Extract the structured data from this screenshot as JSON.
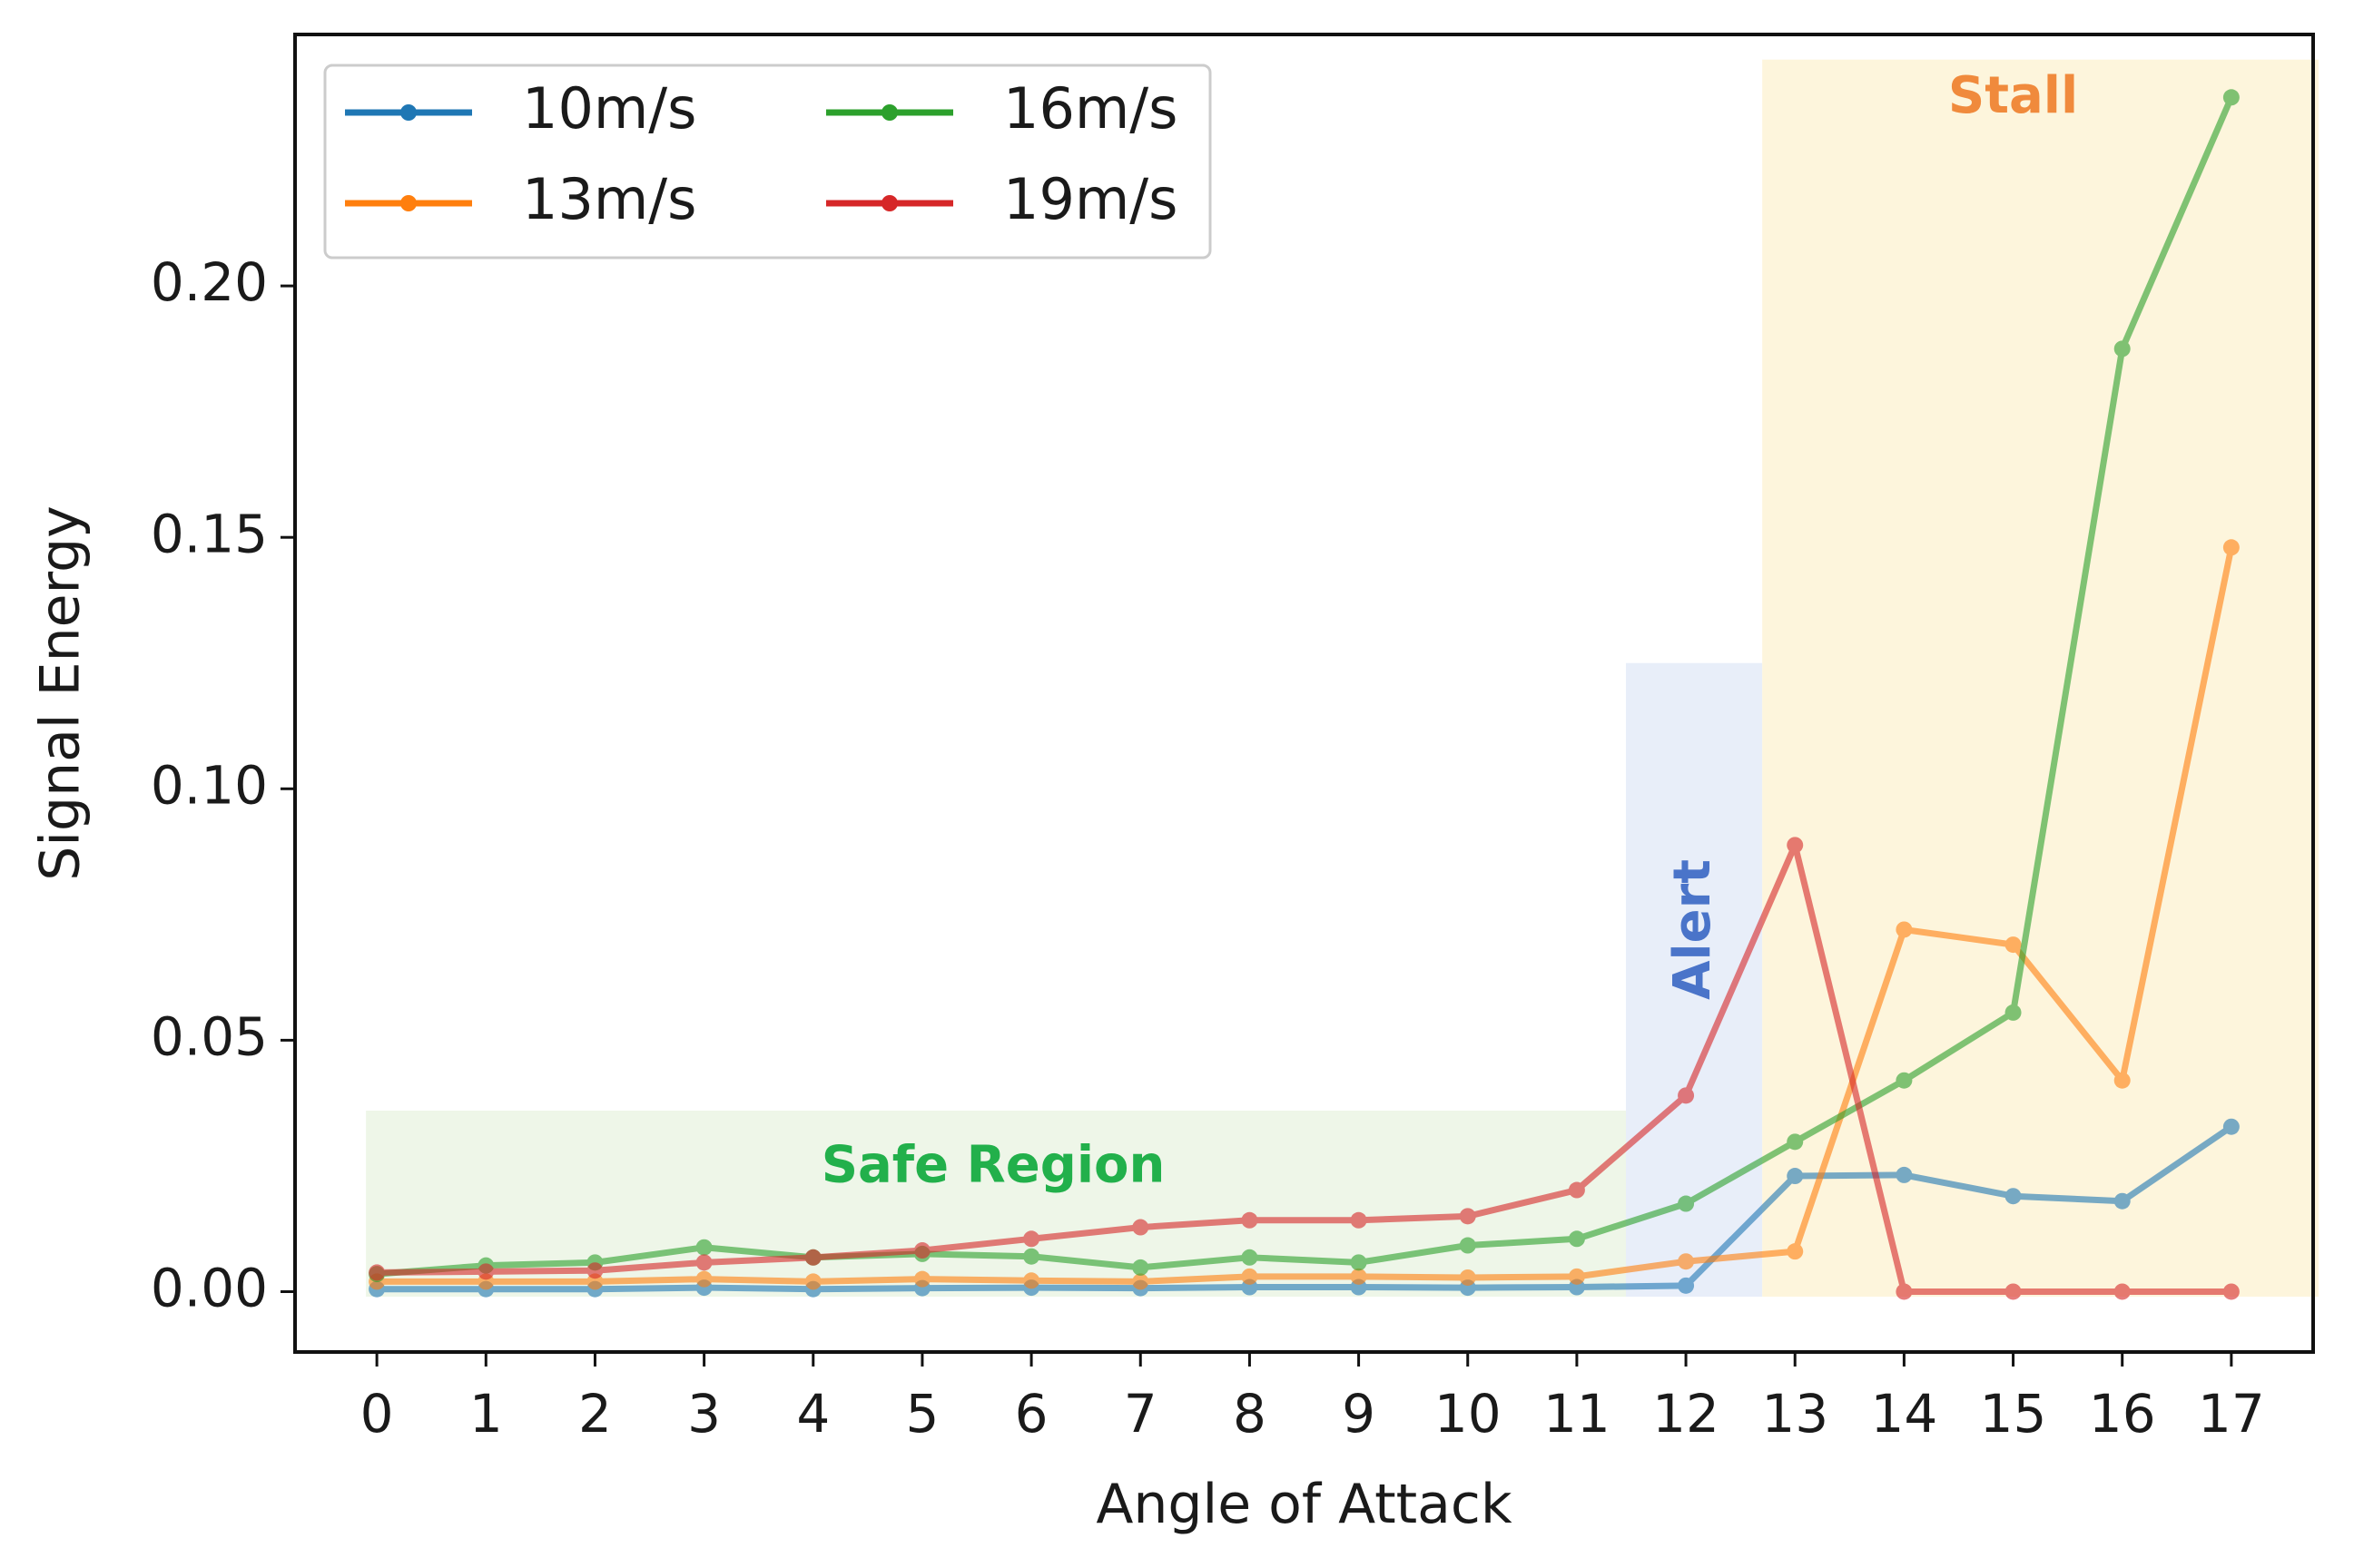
{
  "chart_data": {
    "type": "line",
    "title": "",
    "xlabel": "Angle of Attack",
    "ylabel": "Signal Energy",
    "categories": [
      "0",
      "1",
      "2",
      "3",
      "4",
      "5",
      "6",
      "7",
      "8",
      "9",
      "10",
      "11",
      "12",
      "13",
      "14",
      "15",
      "16",
      "17"
    ],
    "xlim": [
      -0.75,
      17.75
    ],
    "ylim": [
      -0.012,
      0.25
    ],
    "yticks": [
      0.0,
      0.05,
      0.1,
      0.15,
      0.2
    ],
    "ytick_labels": [
      "0.00",
      "0.05",
      "0.10",
      "0.15",
      "0.20"
    ],
    "grid": false,
    "legend_position": "top-left",
    "series": [
      {
        "name": "10m/s",
        "color": "#1f77b4",
        "values": [
          0.0005,
          0.0005,
          0.0005,
          0.0008,
          0.0005,
          0.0007,
          0.0008,
          0.0007,
          0.0009,
          0.0009,
          0.0008,
          0.0009,
          0.0012,
          0.023,
          0.0232,
          0.019,
          0.018,
          0.0328
        ]
      },
      {
        "name": "13m/s",
        "color": "#ff7f0e",
        "values": [
          0.002,
          0.002,
          0.002,
          0.0025,
          0.002,
          0.0025,
          0.0022,
          0.002,
          0.003,
          0.003,
          0.0028,
          0.003,
          0.006,
          0.008,
          0.072,
          0.069,
          0.042,
          0.148
        ]
      },
      {
        "name": "16m/s",
        "color": "#2ca02c",
        "values": [
          0.0035,
          0.0052,
          0.0058,
          0.0088,
          0.0068,
          0.0075,
          0.007,
          0.0048,
          0.0068,
          0.0058,
          0.0092,
          0.0105,
          0.0175,
          0.0298,
          0.042,
          0.0555,
          0.1875,
          0.2375
        ]
      },
      {
        "name": "19m/s",
        "color": "#d62728",
        "values": [
          0.0038,
          0.004,
          0.0042,
          0.0058,
          0.0068,
          0.0082,
          0.0105,
          0.0128,
          0.0142,
          0.0142,
          0.015,
          0.0202,
          0.039,
          0.0888,
          0.0,
          0.0,
          0.0,
          0.0
        ]
      }
    ],
    "regions": [
      {
        "label": "Safe Region",
        "x_from": -0.1,
        "x_to": 11.45,
        "y_from": -0.001,
        "y_to": 0.036,
        "fill": "#eef6e8",
        "text_color": "#22b04b"
      },
      {
        "label": "Alert",
        "x_from": 11.45,
        "x_to": 12.7,
        "y_from": -0.001,
        "y_to": 0.125,
        "fill": "#e8eef9",
        "text_color": "#4a74c9"
      },
      {
        "label": "Stall",
        "x_from": 12.7,
        "x_to": 17.8,
        "y_from": -0.001,
        "y_to": 0.245,
        "fill": "#fdf5dc",
        "text_color": "#f08a3c"
      }
    ]
  }
}
